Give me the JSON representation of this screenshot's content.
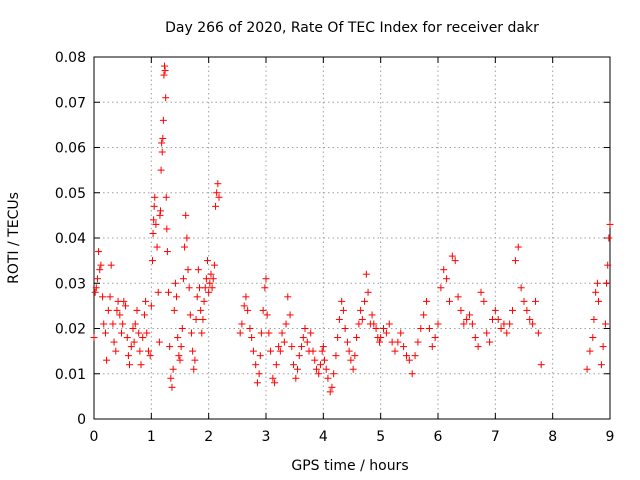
{
  "chart_data": {
    "type": "scatter",
    "title": "Day 266 of 2020, Rate Of TEC Index for receiver dakr",
    "xlabel": "GPS time / hours",
    "ylabel": "ROTI / TECUs",
    "xlim": [
      0,
      9
    ],
    "ylim": [
      0,
      0.08
    ],
    "xticks": [
      0,
      1,
      2,
      3,
      4,
      5,
      6,
      7,
      8,
      9
    ],
    "yticks": [
      0,
      0.01,
      0.02,
      0.03,
      0.04,
      0.05,
      0.06,
      0.07,
      0.08
    ],
    "ytick_labels": [
      "0",
      "0.01",
      "0.02",
      "0.03",
      "0.04",
      "0.05",
      "0.06",
      "0.07",
      "0.08"
    ],
    "grid": true,
    "marker": "+",
    "color": "#ff0000",
    "series": [
      {
        "name": "ROTI",
        "points": [
          [
            0.0,
            0.018
          ],
          [
            0.02,
            0.028
          ],
          [
            0.04,
            0.029
          ],
          [
            0.06,
            0.031
          ],
          [
            0.08,
            0.037
          ],
          [
            0.1,
            0.033
          ],
          [
            0.12,
            0.034
          ],
          [
            0.15,
            0.027
          ],
          [
            0.17,
            0.021
          ],
          [
            0.2,
            0.019
          ],
          [
            0.22,
            0.013
          ],
          [
            0.25,
            0.024
          ],
          [
            0.28,
            0.027
          ],
          [
            0.3,
            0.034
          ],
          [
            0.33,
            0.021
          ],
          [
            0.35,
            0.017
          ],
          [
            0.38,
            0.015
          ],
          [
            0.4,
            0.024
          ],
          [
            0.42,
            0.026
          ],
          [
            0.45,
            0.023
          ],
          [
            0.48,
            0.019
          ],
          [
            0.5,
            0.021
          ],
          [
            0.52,
            0.026
          ],
          [
            0.55,
            0.025
          ],
          [
            0.58,
            0.018
          ],
          [
            0.6,
            0.014
          ],
          [
            0.62,
            0.012
          ],
          [
            0.65,
            0.016
          ],
          [
            0.68,
            0.02
          ],
          [
            0.7,
            0.017
          ],
          [
            0.72,
            0.021
          ],
          [
            0.75,
            0.024
          ],
          [
            0.78,
            0.019
          ],
          [
            0.8,
            0.015
          ],
          [
            0.82,
            0.012
          ],
          [
            0.85,
            0.018
          ],
          [
            0.88,
            0.023
          ],
          [
            0.9,
            0.026
          ],
          [
            0.92,
            0.019
          ],
          [
            0.95,
            0.015
          ],
          [
            0.98,
            0.014
          ],
          [
            1.0,
            0.025
          ],
          [
            1.02,
            0.035
          ],
          [
            1.03,
            0.041
          ],
          [
            1.04,
            0.044
          ],
          [
            1.05,
            0.047
          ],
          [
            1.06,
            0.049
          ],
          [
            1.08,
            0.043
          ],
          [
            1.1,
            0.038
          ],
          [
            1.12,
            0.028
          ],
          [
            1.14,
            0.017
          ],
          [
            1.15,
            0.045
          ],
          [
            1.16,
            0.046
          ],
          [
            1.17,
            0.055
          ],
          [
            1.18,
            0.061
          ],
          [
            1.19,
            0.059
          ],
          [
            1.2,
            0.062
          ],
          [
            1.21,
            0.066
          ],
          [
            1.22,
            0.076
          ],
          [
            1.23,
            0.078
          ],
          [
            1.24,
            0.077
          ],
          [
            1.25,
            0.071
          ],
          [
            1.26,
            0.049
          ],
          [
            1.27,
            0.042
          ],
          [
            1.28,
            0.037
          ],
          [
            1.3,
            0.028
          ],
          [
            1.32,
            0.016
          ],
          [
            1.34,
            0.009
          ],
          [
            1.36,
            0.007
          ],
          [
            1.38,
            0.011
          ],
          [
            1.4,
            0.024
          ],
          [
            1.42,
            0.03
          ],
          [
            1.44,
            0.027
          ],
          [
            1.46,
            0.018
          ],
          [
            1.48,
            0.014
          ],
          [
            1.5,
            0.013
          ],
          [
            1.52,
            0.016
          ],
          [
            1.54,
            0.02
          ],
          [
            1.56,
            0.031
          ],
          [
            1.58,
            0.038
          ],
          [
            1.6,
            0.045
          ],
          [
            1.62,
            0.04
          ],
          [
            1.64,
            0.033
          ],
          [
            1.66,
            0.029
          ],
          [
            1.68,
            0.023
          ],
          [
            1.7,
            0.019
          ],
          [
            1.72,
            0.015
          ],
          [
            1.74,
            0.011
          ],
          [
            1.76,
            0.013
          ],
          [
            1.78,
            0.022
          ],
          [
            1.8,
            0.027
          ],
          [
            1.82,
            0.033
          ],
          [
            1.84,
            0.029
          ],
          [
            1.86,
            0.024
          ],
          [
            1.88,
            0.019
          ],
          [
            1.9,
            0.022
          ],
          [
            1.92,
            0.026
          ],
          [
            1.94,
            0.029
          ],
          [
            1.96,
            0.031
          ],
          [
            1.98,
            0.035
          ],
          [
            2.0,
            0.028
          ],
          [
            2.02,
            0.03
          ],
          [
            2.04,
            0.032
          ],
          [
            2.06,
            0.029
          ],
          [
            2.08,
            0.031
          ],
          [
            2.1,
            0.034
          ],
          [
            2.12,
            0.047
          ],
          [
            2.14,
            0.05
          ],
          [
            2.16,
            0.052
          ],
          [
            2.18,
            0.049
          ],
          [
            2.55,
            0.019
          ],
          [
            2.58,
            0.021
          ],
          [
            2.62,
            0.025
          ],
          [
            2.65,
            0.027
          ],
          [
            2.68,
            0.024
          ],
          [
            2.72,
            0.02
          ],
          [
            2.75,
            0.018
          ],
          [
            2.78,
            0.015
          ],
          [
            2.82,
            0.012
          ],
          [
            2.85,
            0.008
          ],
          [
            2.88,
            0.01
          ],
          [
            2.9,
            0.014
          ],
          [
            2.92,
            0.019
          ],
          [
            2.95,
            0.024
          ],
          [
            2.98,
            0.029
          ],
          [
            3.0,
            0.031
          ],
          [
            3.02,
            0.023
          ],
          [
            3.05,
            0.019
          ],
          [
            3.08,
            0.015
          ],
          [
            3.12,
            0.009
          ],
          [
            3.15,
            0.008
          ],
          [
            3.18,
            0.012
          ],
          [
            3.22,
            0.016
          ],
          [
            3.25,
            0.015
          ],
          [
            3.28,
            0.019
          ],
          [
            3.32,
            0.017
          ],
          [
            3.35,
            0.021
          ],
          [
            3.38,
            0.027
          ],
          [
            3.42,
            0.023
          ],
          [
            3.45,
            0.016
          ],
          [
            3.48,
            0.012
          ],
          [
            3.52,
            0.009
          ],
          [
            3.55,
            0.011
          ],
          [
            3.58,
            0.014
          ],
          [
            3.62,
            0.016
          ],
          [
            3.65,
            0.018
          ],
          [
            3.68,
            0.02
          ],
          [
            3.72,
            0.017
          ],
          [
            3.75,
            0.015
          ],
          [
            3.78,
            0.019
          ],
          [
            3.82,
            0.015
          ],
          [
            3.85,
            0.013
          ],
          [
            3.88,
            0.011
          ],
          [
            3.92,
            0.01
          ],
          [
            3.95,
            0.012
          ],
          [
            3.98,
            0.015
          ],
          [
            4.0,
            0.016
          ],
          [
            4.02,
            0.013
          ],
          [
            4.05,
            0.011
          ],
          [
            4.08,
            0.009
          ],
          [
            4.12,
            0.006
          ],
          [
            4.15,
            0.007
          ],
          [
            4.18,
            0.01
          ],
          [
            4.22,
            0.014
          ],
          [
            4.25,
            0.018
          ],
          [
            4.28,
            0.022
          ],
          [
            4.32,
            0.026
          ],
          [
            4.35,
            0.024
          ],
          [
            4.38,
            0.02
          ],
          [
            4.42,
            0.017
          ],
          [
            4.45,
            0.015
          ],
          [
            4.48,
            0.013
          ],
          [
            4.52,
            0.011
          ],
          [
            4.55,
            0.014
          ],
          [
            4.58,
            0.018
          ],
          [
            4.62,
            0.021
          ],
          [
            4.65,
            0.024
          ],
          [
            4.68,
            0.022
          ],
          [
            4.72,
            0.026
          ],
          [
            4.75,
            0.032
          ],
          [
            4.78,
            0.028
          ],
          [
            4.82,
            0.021
          ],
          [
            4.85,
            0.023
          ],
          [
            4.88,
            0.021
          ],
          [
            4.92,
            0.02
          ],
          [
            4.95,
            0.018
          ],
          [
            4.98,
            0.017
          ],
          [
            5.0,
            0.018
          ],
          [
            5.05,
            0.02
          ],
          [
            5.1,
            0.019
          ],
          [
            5.15,
            0.021
          ],
          [
            5.2,
            0.017
          ],
          [
            5.25,
            0.015
          ],
          [
            5.3,
            0.017
          ],
          [
            5.35,
            0.019
          ],
          [
            5.4,
            0.016
          ],
          [
            5.45,
            0.014
          ],
          [
            5.5,
            0.013
          ],
          [
            5.55,
            0.01
          ],
          [
            5.6,
            0.014
          ],
          [
            5.65,
            0.017
          ],
          [
            5.7,
            0.02
          ],
          [
            5.75,
            0.023
          ],
          [
            5.8,
            0.026
          ],
          [
            5.85,
            0.02
          ],
          [
            5.9,
            0.016
          ],
          [
            5.95,
            0.018
          ],
          [
            6.0,
            0.021
          ],
          [
            6.05,
            0.029
          ],
          [
            6.1,
            0.033
          ],
          [
            6.15,
            0.031
          ],
          [
            6.2,
            0.026
          ],
          [
            6.25,
            0.036
          ],
          [
            6.3,
            0.035
          ],
          [
            6.35,
            0.027
          ],
          [
            6.4,
            0.024
          ],
          [
            6.45,
            0.021
          ],
          [
            6.5,
            0.022
          ],
          [
            6.55,
            0.023
          ],
          [
            6.6,
            0.021
          ],
          [
            6.65,
            0.018
          ],
          [
            6.7,
            0.016
          ],
          [
            6.75,
            0.028
          ],
          [
            6.8,
            0.026
          ],
          [
            6.85,
            0.019
          ],
          [
            6.9,
            0.017
          ],
          [
            6.95,
            0.022
          ],
          [
            7.0,
            0.024
          ],
          [
            7.05,
            0.022
          ],
          [
            7.1,
            0.02
          ],
          [
            7.15,
            0.021
          ],
          [
            7.2,
            0.019
          ],
          [
            7.25,
            0.021
          ],
          [
            7.3,
            0.024
          ],
          [
            7.35,
            0.035
          ],
          [
            7.4,
            0.038
          ],
          [
            7.45,
            0.029
          ],
          [
            7.5,
            0.026
          ],
          [
            7.55,
            0.024
          ],
          [
            7.6,
            0.022
          ],
          [
            7.65,
            0.021
          ],
          [
            7.7,
            0.026
          ],
          [
            7.75,
            0.019
          ],
          [
            7.8,
            0.012
          ],
          [
            8.6,
            0.011
          ],
          [
            8.65,
            0.015
          ],
          [
            8.7,
            0.018
          ],
          [
            8.72,
            0.022
          ],
          [
            8.75,
            0.028
          ],
          [
            8.78,
            0.03
          ],
          [
            8.8,
            0.026
          ],
          [
            8.85,
            0.012
          ],
          [
            8.88,
            0.016
          ],
          [
            8.92,
            0.021
          ],
          [
            8.94,
            0.03
          ],
          [
            8.96,
            0.034
          ],
          [
            8.98,
            0.04
          ],
          [
            9.0,
            0.043
          ]
        ]
      }
    ]
  }
}
